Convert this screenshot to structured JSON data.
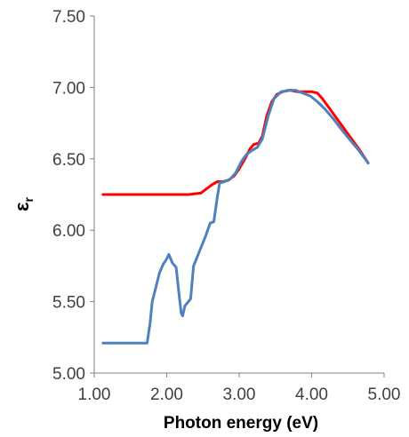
{
  "chart_data": {
    "type": "line",
    "xlabel": "Photon energy (eV)",
    "ylabel": "ε",
    "ylabel_subscript": "r",
    "xlim": [
      1.0,
      5.0
    ],
    "ylim": [
      5.0,
      7.5
    ],
    "x_ticks": [
      "1.00",
      "2.00",
      "3.00",
      "4.00",
      "5.00"
    ],
    "y_ticks": [
      "5.00",
      "5.50",
      "6.00",
      "6.50",
      "7.00",
      "7.50"
    ],
    "grid": false,
    "series": [
      {
        "color": "#ff0000",
        "points": [
          [
            1.12,
            6.25
          ],
          [
            1.5,
            6.25
          ],
          [
            2.0,
            6.25
          ],
          [
            2.3,
            6.25
          ],
          [
            2.47,
            6.26
          ],
          [
            2.55,
            6.29
          ],
          [
            2.63,
            6.32
          ],
          [
            2.7,
            6.34
          ],
          [
            2.78,
            6.34
          ],
          [
            2.85,
            6.35
          ],
          [
            2.93,
            6.38
          ],
          [
            3.0,
            6.43
          ],
          [
            3.08,
            6.5
          ],
          [
            3.15,
            6.57
          ],
          [
            3.2,
            6.6
          ],
          [
            3.27,
            6.61
          ],
          [
            3.32,
            6.66
          ],
          [
            3.38,
            6.8
          ],
          [
            3.45,
            6.9
          ],
          [
            3.52,
            6.95
          ],
          [
            3.6,
            6.97
          ],
          [
            3.7,
            6.98
          ],
          [
            3.8,
            6.97
          ],
          [
            3.9,
            6.97
          ],
          [
            4.0,
            6.97
          ],
          [
            4.08,
            6.96
          ],
          [
            4.15,
            6.92
          ],
          [
            4.25,
            6.85
          ],
          [
            4.35,
            6.78
          ],
          [
            4.45,
            6.71
          ],
          [
            4.55,
            6.64
          ],
          [
            4.65,
            6.57
          ],
          [
            4.78,
            6.47
          ]
        ]
      },
      {
        "color": "#4f81bd",
        "points": [
          [
            1.12,
            5.21
          ],
          [
            1.4,
            5.21
          ],
          [
            1.6,
            5.21
          ],
          [
            1.73,
            5.21
          ],
          [
            1.77,
            5.35
          ],
          [
            1.8,
            5.5
          ],
          [
            1.85,
            5.6
          ],
          [
            1.9,
            5.7
          ],
          [
            1.95,
            5.76
          ],
          [
            2.0,
            5.8
          ],
          [
            2.03,
            5.83
          ],
          [
            2.08,
            5.77
          ],
          [
            2.13,
            5.74
          ],
          [
            2.17,
            5.55
          ],
          [
            2.2,
            5.42
          ],
          [
            2.22,
            5.4
          ],
          [
            2.25,
            5.47
          ],
          [
            2.3,
            5.5
          ],
          [
            2.33,
            5.52
          ],
          [
            2.37,
            5.75
          ],
          [
            2.45,
            5.85
          ],
          [
            2.53,
            5.95
          ],
          [
            2.6,
            6.05
          ],
          [
            2.65,
            6.06
          ],
          [
            2.7,
            6.24
          ],
          [
            2.73,
            6.33
          ],
          [
            2.8,
            6.34
          ],
          [
            2.88,
            6.36
          ],
          [
            2.95,
            6.4
          ],
          [
            3.03,
            6.48
          ],
          [
            3.1,
            6.53
          ],
          [
            3.18,
            6.56
          ],
          [
            3.25,
            6.58
          ],
          [
            3.32,
            6.64
          ],
          [
            3.4,
            6.8
          ],
          [
            3.48,
            6.92
          ],
          [
            3.58,
            6.97
          ],
          [
            3.68,
            6.98
          ],
          [
            3.78,
            6.98
          ],
          [
            3.88,
            6.96
          ],
          [
            3.98,
            6.94
          ],
          [
            4.08,
            6.9
          ],
          [
            4.18,
            6.85
          ],
          [
            4.3,
            6.78
          ],
          [
            4.42,
            6.7
          ],
          [
            4.55,
            6.62
          ],
          [
            4.65,
            6.56
          ],
          [
            4.78,
            6.47
          ]
        ]
      }
    ]
  }
}
